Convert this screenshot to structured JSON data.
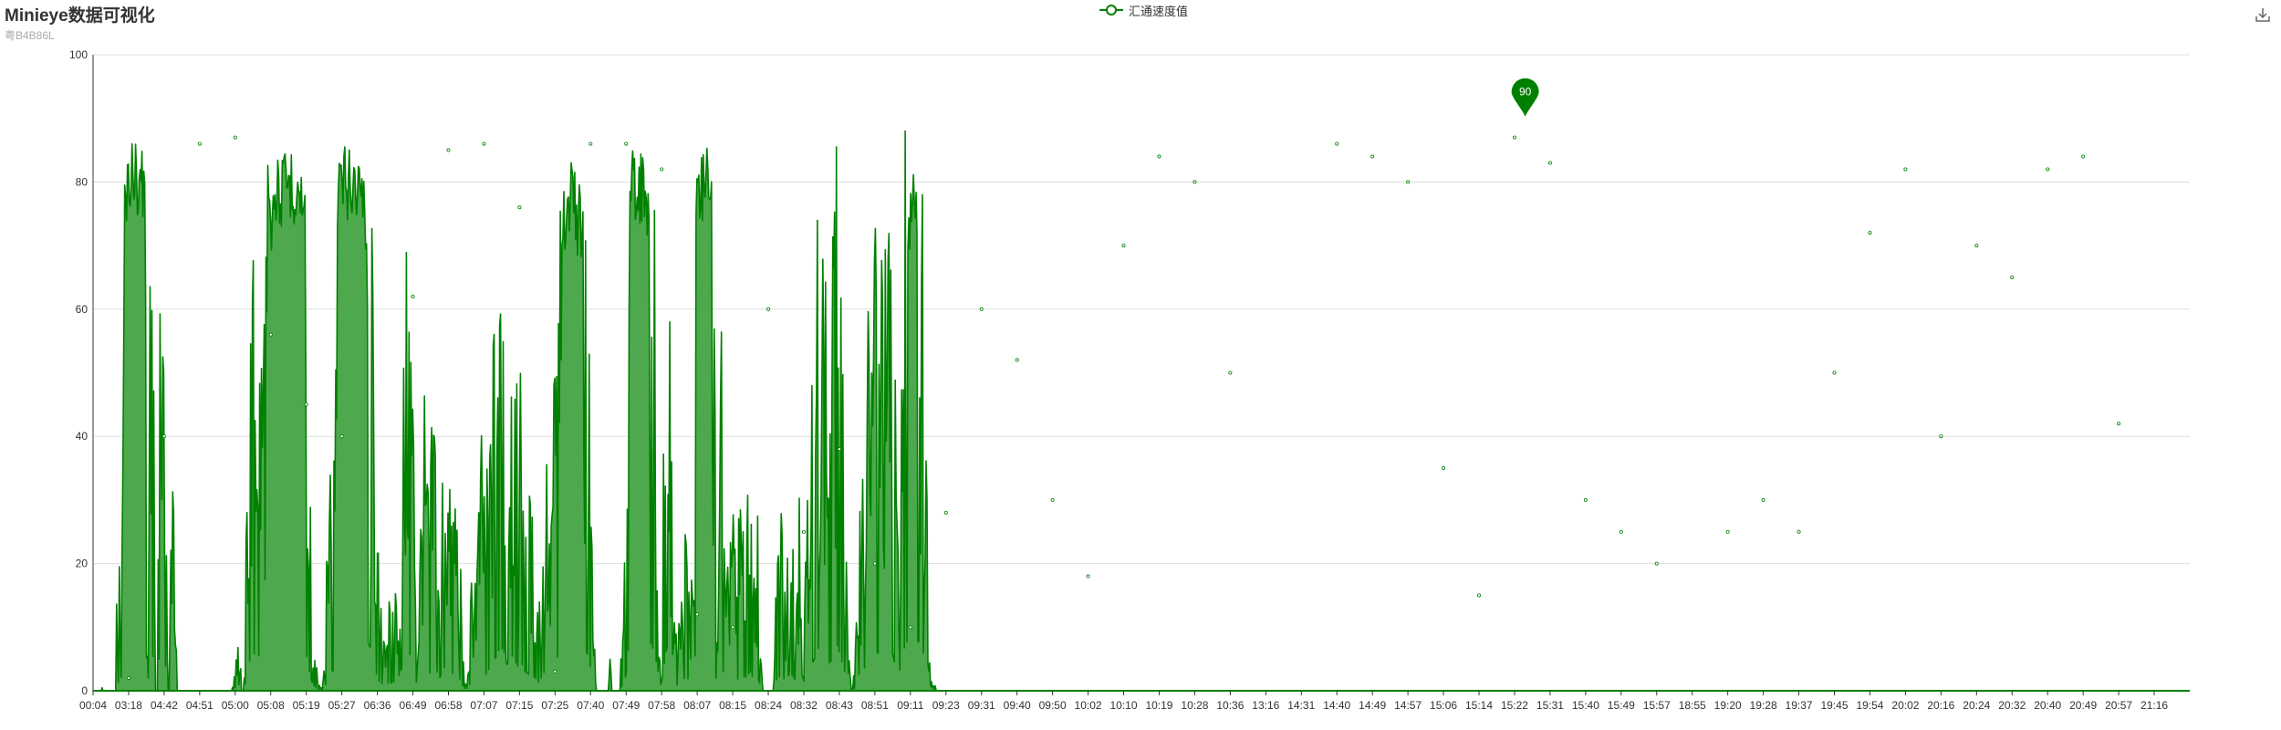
{
  "header": {
    "title": "Minieye数据可视化",
    "subtitle": "粤B4B86L"
  },
  "legend": {
    "label": "汇通速度值"
  },
  "toolbox": {
    "icon": "download-icon"
  },
  "colors": {
    "line": "#008000",
    "area": "#4ea94e",
    "grid": "#dddddd",
    "axis": "#333333",
    "markpoint": "#008000"
  },
  "chart_data": {
    "type": "area",
    "title": "Minieye数据可视化",
    "subtitle": "粤B4B86L",
    "xlabel": "",
    "ylabel": "",
    "ylim": [
      0,
      100
    ],
    "y_ticks": [
      0,
      20,
      40,
      60,
      80,
      100
    ],
    "grid": true,
    "legend_position": "top-center",
    "x_tick_labels": [
      "00:04",
      "03:18",
      "04:42",
      "04:51",
      "05:00",
      "05:08",
      "05:19",
      "05:27",
      "06:36",
      "06:49",
      "06:58",
      "07:07",
      "07:15",
      "07:25",
      "07:40",
      "07:49",
      "07:58",
      "08:07",
      "08:15",
      "08:24",
      "08:32",
      "08:43",
      "08:51",
      "09:11",
      "09:23",
      "09:31",
      "09:40",
      "09:50",
      "10:02",
      "10:10",
      "10:19",
      "10:28",
      "10:36",
      "13:16",
      "14:31",
      "14:40",
      "14:49",
      "14:57",
      "15:06",
      "15:14",
      "15:22",
      "15:31",
      "15:40",
      "15:49",
      "15:57",
      "18:55",
      "19:20",
      "19:28",
      "19:37",
      "19:45",
      "19:54",
      "20:02",
      "20:16",
      "20:24",
      "20:32",
      "20:40",
      "20:49",
      "20:57",
      "21:16"
    ],
    "series": [
      {
        "name": "汇通速度值",
        "x": [
          "00:04",
          "03:18",
          "04:42",
          "04:51",
          "05:00",
          "05:08",
          "05:19",
          "05:27",
          "06:36",
          "06:49",
          "06:58",
          "07:07",
          "07:15",
          "07:25",
          "07:40",
          "07:49",
          "07:58",
          "08:07",
          "08:15",
          "08:24",
          "08:32",
          "08:43",
          "08:51",
          "09:11",
          "09:23",
          "09:31",
          "09:40",
          "09:50",
          "10:02",
          "10:10",
          "10:19",
          "10:28",
          "10:36",
          "13:16",
          "14:31",
          "14:40",
          "14:49",
          "14:57",
          "15:06",
          "15:14",
          "15:22",
          "15:31",
          "15:40",
          "15:49",
          "15:57",
          "18:55",
          "19:20",
          "19:28",
          "19:37",
          "19:45",
          "19:54",
          "20:02",
          "20:16",
          "20:24",
          "20:32",
          "20:40",
          "20:49",
          "20:57",
          "21:16"
        ],
        "values": [
          0,
          2,
          40,
          86,
          87,
          56,
          45,
          40,
          0,
          62,
          85,
          86,
          76,
          3,
          86,
          86,
          82,
          12,
          10,
          60,
          25,
          38,
          20,
          10,
          28,
          60,
          52,
          30,
          18,
          70,
          84,
          80,
          50,
          0,
          0,
          86,
          84,
          80,
          35,
          15,
          87,
          83,
          30,
          25,
          20,
          0,
          25,
          30,
          25,
          50,
          72,
          82,
          40,
          70,
          65,
          82,
          84,
          42,
          0
        ],
        "profile": [
          [
            0,
            0
          ],
          [
            0.25,
            0
          ],
          [
            0.26,
            10
          ],
          [
            0.27,
            2
          ],
          [
            0.28,
            0
          ],
          [
            0.5,
            0
          ],
          [
            0.65,
            0
          ],
          [
            0.66,
            15
          ],
          [
            0.68,
            2
          ],
          [
            0.7,
            30
          ],
          [
            0.72,
            5
          ],
          [
            0.74,
            48
          ],
          [
            0.76,
            10
          ],
          [
            0.8,
            25
          ],
          [
            0.85,
            60
          ],
          [
            0.9,
            85
          ],
          [
            1.0,
            86
          ],
          [
            1.1,
            87
          ],
          [
            1.2,
            87
          ],
          [
            1.35,
            86
          ],
          [
            1.45,
            85
          ],
          [
            1.5,
            60
          ],
          [
            1.52,
            10
          ],
          [
            1.55,
            0
          ],
          [
            1.6,
            45
          ],
          [
            1.62,
            75
          ],
          [
            1.68,
            55
          ],
          [
            1.72,
            30
          ],
          [
            1.75,
            0
          ],
          [
            1.82,
            0
          ],
          [
            1.84,
            40
          ],
          [
            1.88,
            60
          ],
          [
            1.93,
            65
          ],
          [
            1.98,
            40
          ],
          [
            2.02,
            45
          ],
          [
            2.06,
            30
          ],
          [
            2.1,
            0
          ],
          [
            2.14,
            0
          ],
          [
            2.2,
            30
          ],
          [
            2.24,
            45
          ],
          [
            2.3,
            20
          ],
          [
            2.33,
            10
          ],
          [
            2.36,
            0
          ],
          [
            3.9,
            0
          ],
          [
            4.1,
            10
          ],
          [
            4.18,
            0
          ],
          [
            4.25,
            0
          ],
          [
            4.35,
            35
          ],
          [
            4.45,
            55
          ],
          [
            4.6,
            60
          ],
          [
            4.75,
            48
          ],
          [
            4.85,
            65
          ],
          [
            4.95,
            72
          ],
          [
            5.05,
            82
          ],
          [
            5.15,
            85
          ],
          [
            5.3,
            84
          ],
          [
            5.5,
            86
          ],
          [
            5.7,
            85
          ],
          [
            5.85,
            84
          ],
          [
            5.95,
            78
          ],
          [
            6.05,
            40
          ],
          [
            6.15,
            15
          ],
          [
            6.25,
            5
          ],
          [
            6.35,
            2
          ],
          [
            6.45,
            0
          ],
          [
            6.55,
            10
          ],
          [
            6.65,
            38
          ],
          [
            6.75,
            30
          ],
          [
            6.85,
            75
          ],
          [
            6.95,
            86
          ],
          [
            7.1,
            86
          ],
          [
            7.3,
            86
          ],
          [
            7.5,
            85
          ],
          [
            7.65,
            82
          ],
          [
            7.75,
            75
          ],
          [
            7.85,
            60
          ],
          [
            7.95,
            30
          ],
          [
            8.05,
            15
          ],
          [
            8.15,
            10
          ],
          [
            8.35,
            12
          ],
          [
            8.55,
            15
          ],
          [
            8.65,
            30
          ],
          [
            8.75,
            45
          ],
          [
            8.85,
            62
          ],
          [
            8.95,
            55
          ],
          [
            9.05,
            30
          ],
          [
            9.12,
            5
          ],
          [
            9.2,
            20
          ],
          [
            9.3,
            40
          ],
          [
            9.45,
            25
          ],
          [
            9.6,
            42
          ],
          [
            9.75,
            20
          ],
          [
            9.9,
            38
          ],
          [
            10.05,
            25
          ],
          [
            10.2,
            30
          ],
          [
            10.35,
            15
          ],
          [
            10.45,
            0
          ],
          [
            10.55,
            5
          ],
          [
            10.65,
            15
          ],
          [
            10.8,
            20
          ],
          [
            10.95,
            35
          ],
          [
            11.05,
            25
          ],
          [
            11.2,
            40
          ],
          [
            11.35,
            55
          ],
          [
            11.45,
            68
          ],
          [
            11.55,
            65
          ],
          [
            11.65,
            40
          ],
          [
            11.8,
            55
          ],
          [
            11.95,
            38
          ],
          [
            12.05,
            45
          ],
          [
            12.15,
            30
          ],
          [
            12.3,
            25
          ],
          [
            12.45,
            20
          ],
          [
            12.55,
            12
          ],
          [
            12.65,
            25
          ],
          [
            12.75,
            35
          ],
          [
            12.85,
            18
          ],
          [
            12.95,
            40
          ],
          [
            13.05,
            50
          ],
          [
            13.12,
            60
          ],
          [
            13.2,
            80
          ],
          [
            13.35,
            82
          ],
          [
            13.5,
            84
          ],
          [
            13.65,
            80
          ],
          [
            13.8,
            78
          ],
          [
            13.9,
            60
          ],
          [
            13.98,
            40
          ],
          [
            14.05,
            20
          ],
          [
            14.15,
            0
          ],
          [
            14.2,
            0
          ],
          [
            14.5,
            0
          ],
          [
            14.55,
            5
          ],
          [
            14.6,
            0
          ],
          [
            14.8,
            0
          ],
          [
            14.9,
            8
          ],
          [
            14.95,
            15
          ],
          [
            15.0,
            25
          ],
          [
            15.05,
            60
          ],
          [
            15.1,
            84
          ],
          [
            15.25,
            86
          ],
          [
            15.45,
            85
          ],
          [
            15.65,
            80
          ],
          [
            15.8,
            60
          ],
          [
            15.9,
            30
          ],
          [
            15.95,
            5
          ],
          [
            16.0,
            15
          ],
          [
            16.15,
            70
          ],
          [
            16.25,
            45
          ],
          [
            16.3,
            20
          ],
          [
            16.4,
            8
          ],
          [
            16.55,
            12
          ],
          [
            16.7,
            25
          ],
          [
            16.8,
            10
          ],
          [
            16.9,
            25
          ],
          [
            16.95,
            60
          ],
          [
            17.0,
            87
          ],
          [
            17.1,
            85
          ],
          [
            17.2,
            86
          ],
          [
            17.3,
            90
          ],
          [
            17.38,
            85
          ],
          [
            17.45,
            70
          ],
          [
            17.5,
            40
          ],
          [
            17.55,
            5
          ],
          [
            17.6,
            30
          ],
          [
            17.65,
            62
          ],
          [
            17.7,
            40
          ],
          [
            17.8,
            10
          ],
          [
            17.9,
            20
          ],
          [
            18.0,
            35
          ],
          [
            18.1,
            10
          ],
          [
            18.2,
            30
          ],
          [
            18.35,
            20
          ],
          [
            18.5,
            30
          ],
          [
            18.6,
            15
          ],
          [
            18.7,
            25
          ],
          [
            18.78,
            5
          ],
          [
            18.85,
            0
          ],
          [
            19.15,
            0
          ],
          [
            19.25,
            20
          ],
          [
            19.4,
            25
          ],
          [
            19.5,
            10
          ],
          [
            19.6,
            30
          ],
          [
            19.75,
            18
          ],
          [
            19.9,
            35
          ],
          [
            20.0,
            15
          ],
          [
            20.1,
            40
          ],
          [
            20.25,
            45
          ],
          [
            20.35,
            55
          ],
          [
            20.45,
            75
          ],
          [
            20.55,
            62
          ],
          [
            20.65,
            50
          ],
          [
            20.75,
            40
          ],
          [
            20.85,
            82
          ],
          [
            20.95,
            70
          ],
          [
            21.05,
            50
          ],
          [
            21.15,
            30
          ],
          [
            21.25,
            8
          ],
          [
            21.35,
            0
          ],
          [
            21.45,
            5
          ],
          [
            21.55,
            25
          ],
          [
            21.7,
            35
          ],
          [
            21.85,
            55
          ],
          [
            22.0,
            68
          ],
          [
            22.1,
            58
          ],
          [
            22.25,
            62
          ],
          [
            22.35,
            55
          ],
          [
            22.45,
            70
          ],
          [
            22.55,
            45
          ],
          [
            22.65,
            25
          ],
          [
            22.75,
            40
          ],
          [
            22.85,
            75
          ],
          [
            23.0,
            80
          ],
          [
            23.1,
            82
          ],
          [
            23.2,
            78
          ],
          [
            23.3,
            75
          ],
          [
            23.4,
            50
          ],
          [
            23.5,
            42
          ],
          [
            23.55,
            10
          ],
          [
            23.6,
            0
          ],
          [
            23.7,
            3
          ],
          [
            23.75,
            0
          ],
          [
            24.0,
            0
          ]
        ]
      }
    ],
    "mark_points": [
      {
        "label": "90",
        "value": 90,
        "at": "15:22"
      }
    ]
  }
}
